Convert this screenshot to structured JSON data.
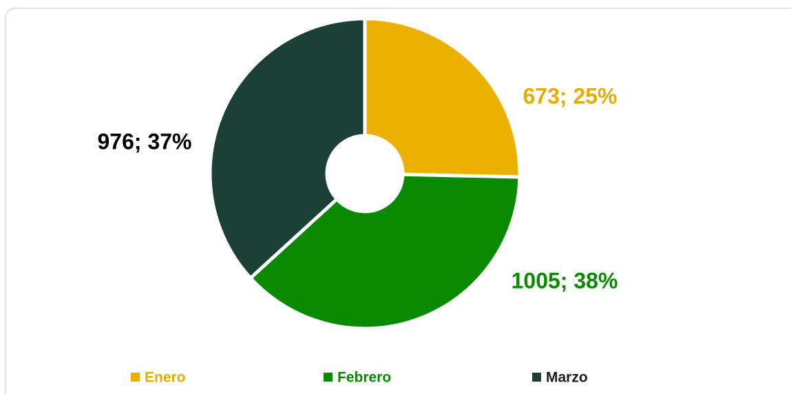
{
  "chart_data": {
    "type": "doughnut",
    "categories": [
      "Enero",
      "Febrero",
      "Marzo"
    ],
    "values": [
      673,
      1005,
      976
    ],
    "value_labels": [
      "673; 25%",
      "1005; 38%",
      "976; 37%"
    ],
    "colors": [
      "#ebb000",
      "#0a8a00",
      "#1b4035"
    ],
    "label_colors": [
      "#e6ac00",
      "#0a8a00",
      "#000000"
    ],
    "legend": "bottom"
  }
}
